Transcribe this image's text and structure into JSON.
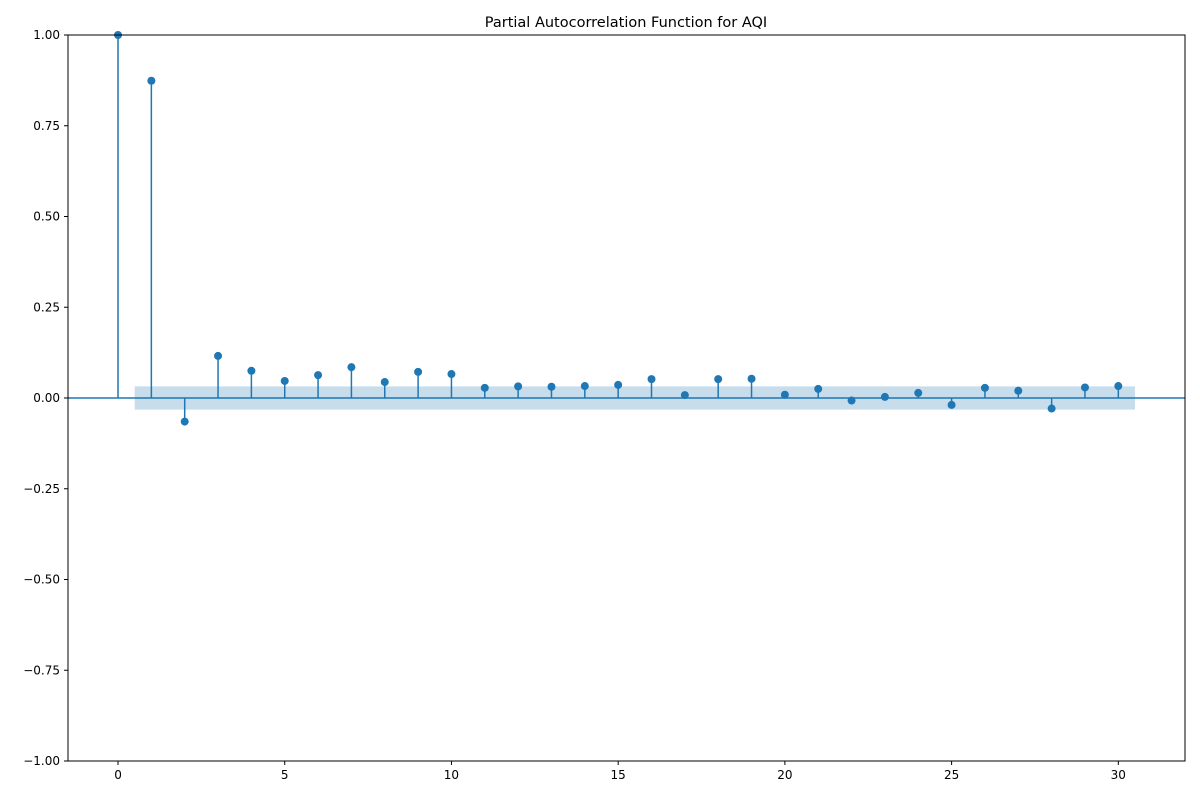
{
  "chart_data": {
    "type": "stem",
    "title": "Partial Autocorrelation Function for AQI",
    "xlabel": "",
    "ylabel": "",
    "xlim": [
      -1.5,
      32
    ],
    "ylim": [
      -1.0,
      1.0
    ],
    "x_ticks": [
      0,
      5,
      10,
      15,
      20,
      25,
      30
    ],
    "x_tick_labels": [
      "0",
      "5",
      "10",
      "15",
      "20",
      "25",
      "30"
    ],
    "y_ticks": [
      -1.0,
      -0.75,
      -0.5,
      -0.25,
      0.0,
      0.25,
      0.5,
      0.75,
      1.0
    ],
    "y_tick_labels": [
      "−1.00",
      "−0.75",
      "−0.50",
      "−0.25",
      "0.00",
      "0.25",
      "0.50",
      "0.75",
      "1.00"
    ],
    "grid": false,
    "colors": {
      "series": "#1f77b4",
      "band": "#1f77b4"
    },
    "confidence_band": {
      "x_range": [
        0.5,
        30.5
      ],
      "lower": -0.032,
      "upper": 0.032
    },
    "lags": [
      0,
      1,
      2,
      3,
      4,
      5,
      6,
      7,
      8,
      9,
      10,
      11,
      12,
      13,
      14,
      15,
      16,
      17,
      18,
      19,
      20,
      21,
      22,
      23,
      24,
      25,
      26,
      27,
      28,
      29,
      30
    ],
    "values": [
      1.0,
      0.874,
      -0.065,
      0.116,
      0.075,
      0.047,
      0.063,
      0.085,
      0.044,
      0.072,
      0.066,
      0.028,
      0.032,
      0.031,
      0.033,
      0.036,
      0.052,
      0.008,
      0.052,
      0.053,
      0.009,
      0.025,
      -0.007,
      0.003,
      0.014,
      -0.019,
      0.028,
      0.02,
      -0.029,
      0.029,
      0.033
    ]
  }
}
